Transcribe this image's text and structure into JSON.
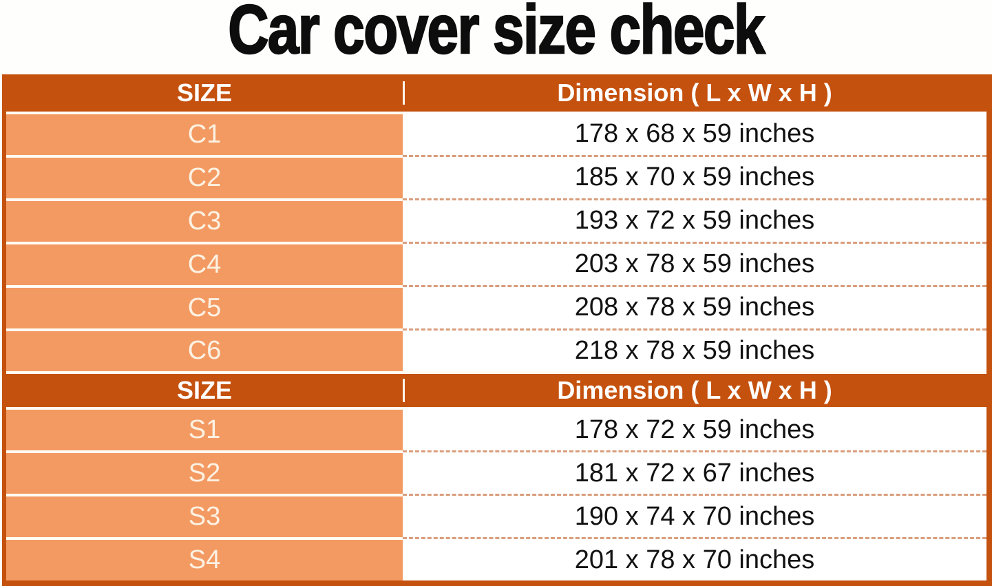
{
  "title": "Car cover size check",
  "colors": {
    "header_bg": "#C5510E",
    "size_cell_bg": "#F39A63",
    "dimension_cell_bg": "#FFFFFF",
    "table_border": "#C5510E",
    "dashed_separator": "#D99D7B",
    "solid_separator": "#FFFCF4",
    "header_text": "#FFFFFF",
    "size_text": "#FCF2E3",
    "dimension_text": "#121212",
    "title_text": "#0D0D0D"
  },
  "sections": [
    {
      "header": {
        "size_label": "SIZE",
        "dimension_label": "Dimension ( L x W x H )"
      },
      "rows": [
        {
          "size": "C1",
          "dimension": "178 x 68 x 59 inches"
        },
        {
          "size": "C2",
          "dimension": "185 x 70 x 59 inches"
        },
        {
          "size": "C3",
          "dimension": "193 x 72 x 59 inches"
        },
        {
          "size": "C4",
          "dimension": "203 x 78 x 59 inches"
        },
        {
          "size": "C5",
          "dimension": "208 x 78 x 59 inches"
        },
        {
          "size": "C6",
          "dimension": "218 x 78 x 59 inches"
        }
      ]
    },
    {
      "header": {
        "size_label": "SIZE",
        "dimension_label": "Dimension ( L x W x H )"
      },
      "rows": [
        {
          "size": "S1",
          "dimension": "178 x 72 x 59 inches"
        },
        {
          "size": "S2",
          "dimension": "181 x 72 x 67 inches"
        },
        {
          "size": "S3",
          "dimension": "190 x 74 x 70 inches"
        },
        {
          "size": "S4",
          "dimension": "201 x 78 x 70 inches"
        }
      ]
    }
  ],
  "chart_data": {
    "type": "table",
    "title": "Car cover size check",
    "columns": [
      "SIZE",
      "Dimension ( L x W x H )"
    ],
    "rows": [
      [
        "C1",
        "178 x 68 x 59 inches"
      ],
      [
        "C2",
        "185 x 70 x 59 inches"
      ],
      [
        "C3",
        "193 x 72 x 59 inches"
      ],
      [
        "C4",
        "203 x 78 x 59 inches"
      ],
      [
        "C5",
        "208 x 78 x 59 inches"
      ],
      [
        "C6",
        "218 x 78 x 59 inches"
      ],
      [
        "S1",
        "178 x 72 x 59 inches"
      ],
      [
        "S2",
        "181 x 72 x 67 inches"
      ],
      [
        "S3",
        "190 x 74 x 70 inches"
      ],
      [
        "S4",
        "201 x 78 x 70 inches"
      ]
    ]
  }
}
